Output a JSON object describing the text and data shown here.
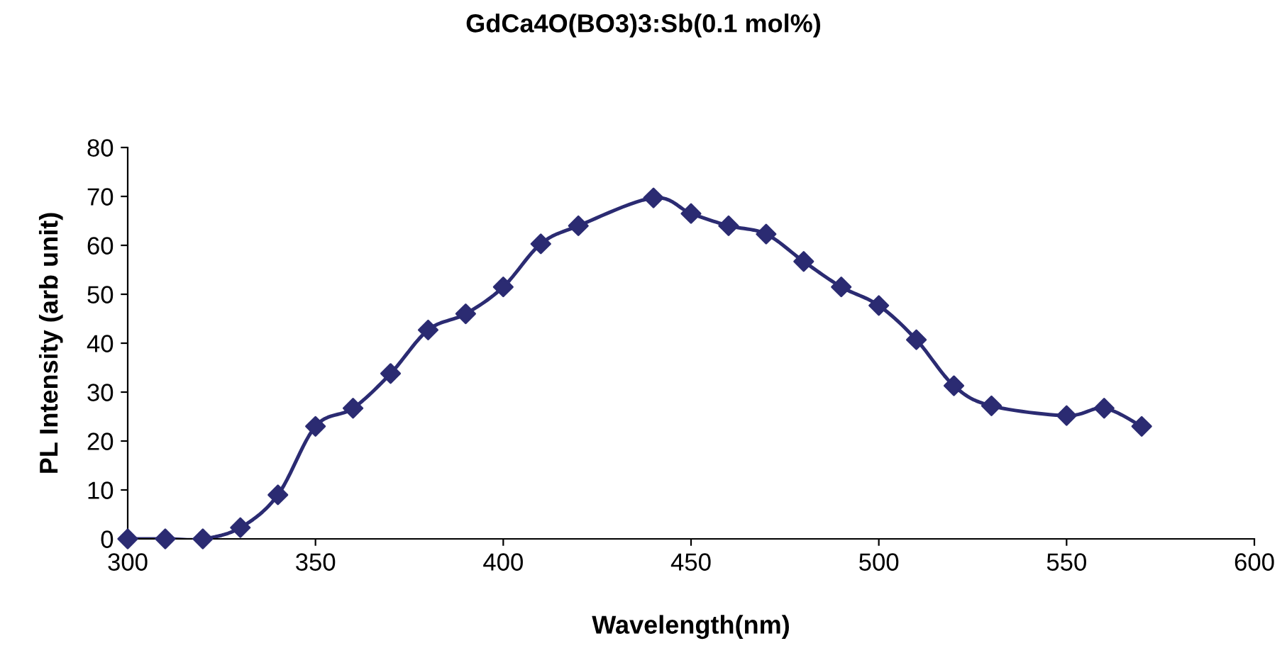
{
  "chart_data": {
    "type": "line",
    "title": "GdCa4O(BO3)3:Sb(0.1 mol%)",
    "xlabel": "Wavelength(nm)",
    "ylabel": "PL Intensity (arb unit)",
    "x": [
      300,
      310,
      320,
      330,
      340,
      350,
      360,
      370,
      380,
      390,
      400,
      410,
      420,
      440,
      450,
      460,
      470,
      480,
      490,
      500,
      510,
      520,
      530,
      550,
      560,
      570
    ],
    "series": [
      {
        "color": "#2b2b72",
        "values": [
          0,
          0,
          0,
          2.3,
          9,
          23,
          26.7,
          33.8,
          42.7,
          46,
          51.5,
          60.3,
          64,
          69.7,
          66.5,
          64,
          62.3,
          56.7,
          51.5,
          47.7,
          40.7,
          31.3,
          27.2,
          25.2,
          26.7,
          23
        ]
      }
    ],
    "xlim": [
      300,
      600
    ],
    "xticks": [
      300,
      350,
      400,
      450,
      500,
      550,
      600
    ],
    "ylim": [
      0,
      80
    ],
    "yticks": [
      0,
      10,
      20,
      30,
      40,
      50,
      60,
      70,
      80
    ],
    "grid": false,
    "legend": false,
    "marker": "diamond",
    "line_style": "solid"
  }
}
